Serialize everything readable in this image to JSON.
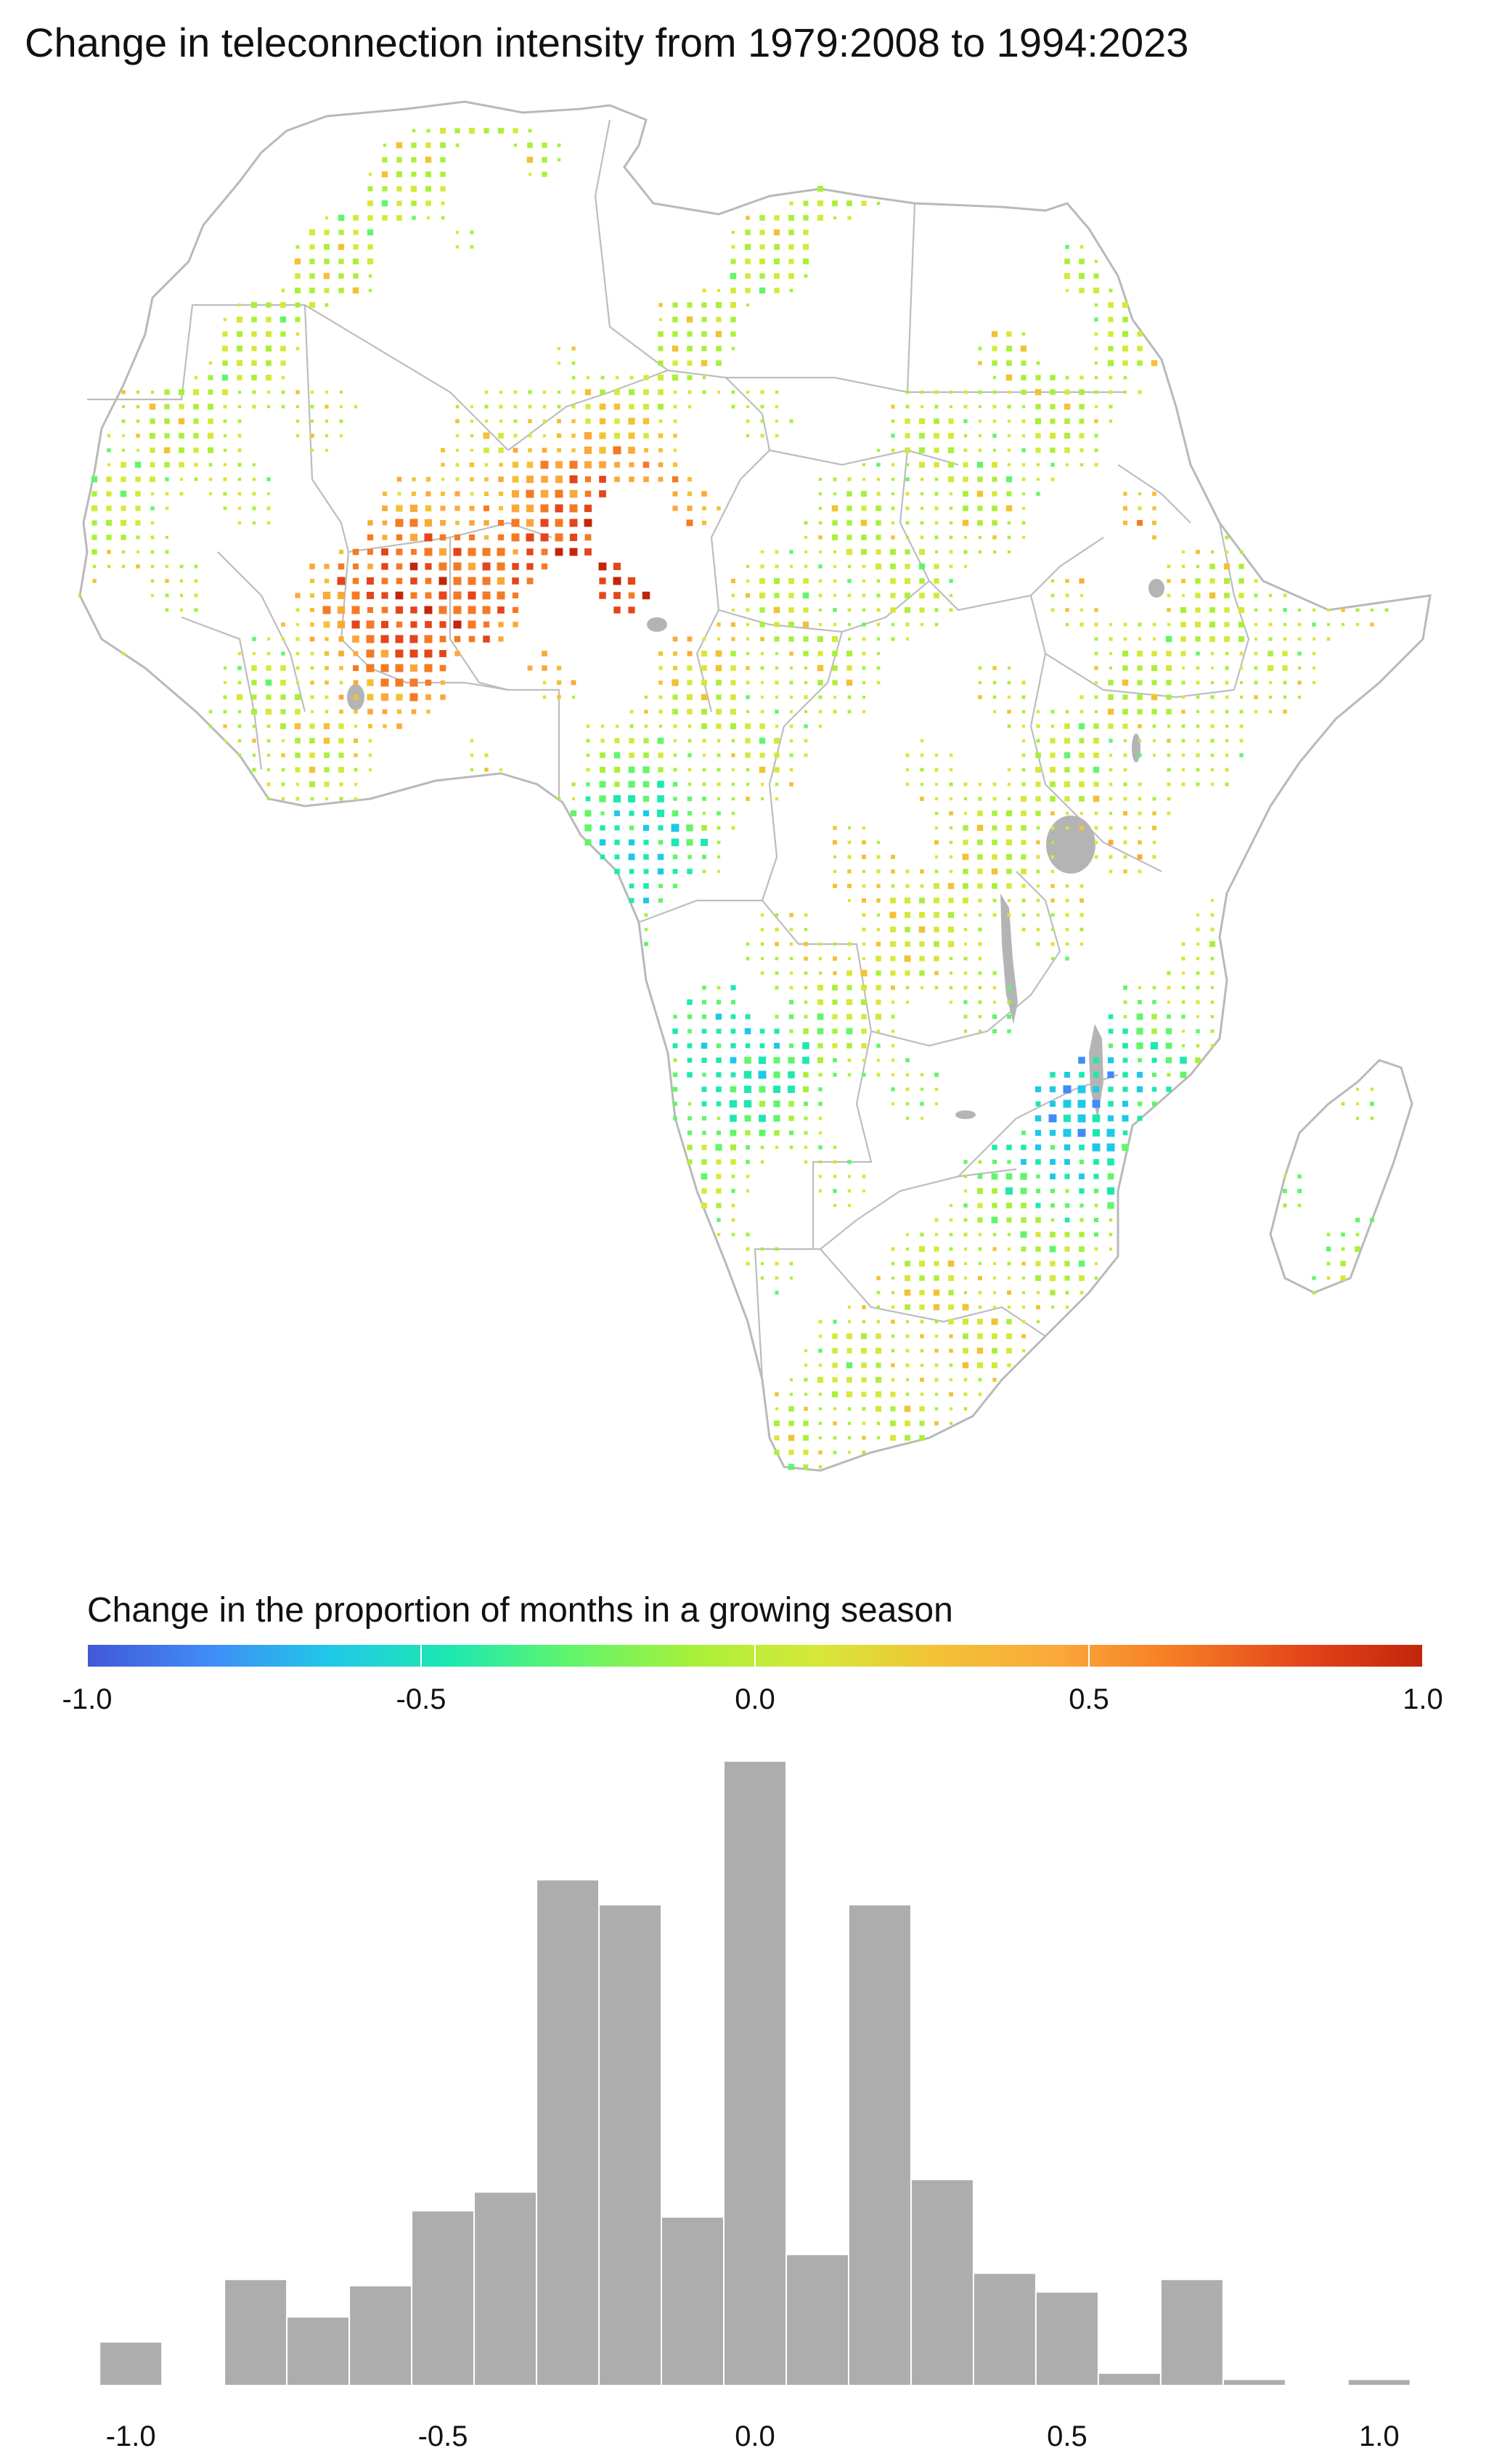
{
  "title": "Change in teleconnection intensity from 1979:2008 to 1994:2023",
  "legend": {
    "title": "Change in the proportion of months in a growing season",
    "ticks": [
      "-1.0",
      "-0.5",
      "0.0",
      "0.5",
      "1.0"
    ],
    "tick_values": [
      -1.0,
      -0.5,
      0.0,
      0.5,
      1.0
    ],
    "colors": [
      "#4457d6",
      "#3f8cf6",
      "#20c8e8",
      "#1ee8b0",
      "#62f56a",
      "#a8f03a",
      "#d6e838",
      "#f2c236",
      "#fba83a",
      "#f57a24",
      "#e3461a",
      "#c2260a"
    ]
  },
  "map": {
    "region": "Africa",
    "land_color": "#ffffff",
    "border_color": "#b9b9b9",
    "lake_color": "#b4b4b4"
  },
  "chart_data": {
    "type": "bar",
    "title": "",
    "xlabel": "",
    "ylabel": "",
    "x_ticks": [
      "-1.0",
      "-0.5",
      "0.0",
      "0.5",
      "1.0"
    ],
    "x_tick_values": [
      -1.0,
      -0.5,
      0.0,
      0.5,
      1.0
    ],
    "bin_width": 0.1,
    "bin_starts": [
      -1.05,
      -0.95,
      -0.85,
      -0.75,
      -0.65,
      -0.55,
      -0.45,
      -0.35,
      -0.25,
      -0.15,
      -0.05,
      0.05,
      0.15,
      0.25,
      0.35,
      0.45,
      0.55,
      0.65,
      0.75,
      0.85,
      0.95
    ],
    "counts": [
      7,
      0,
      17,
      11,
      16,
      28,
      31,
      81,
      77,
      27,
      100,
      21,
      77,
      33,
      18,
      15,
      2,
      17,
      1,
      0,
      1
    ],
    "bar_color": "#adadad",
    "xlim": [
      -1.07,
      1.07
    ],
    "ylim": [
      0,
      100
    ]
  }
}
